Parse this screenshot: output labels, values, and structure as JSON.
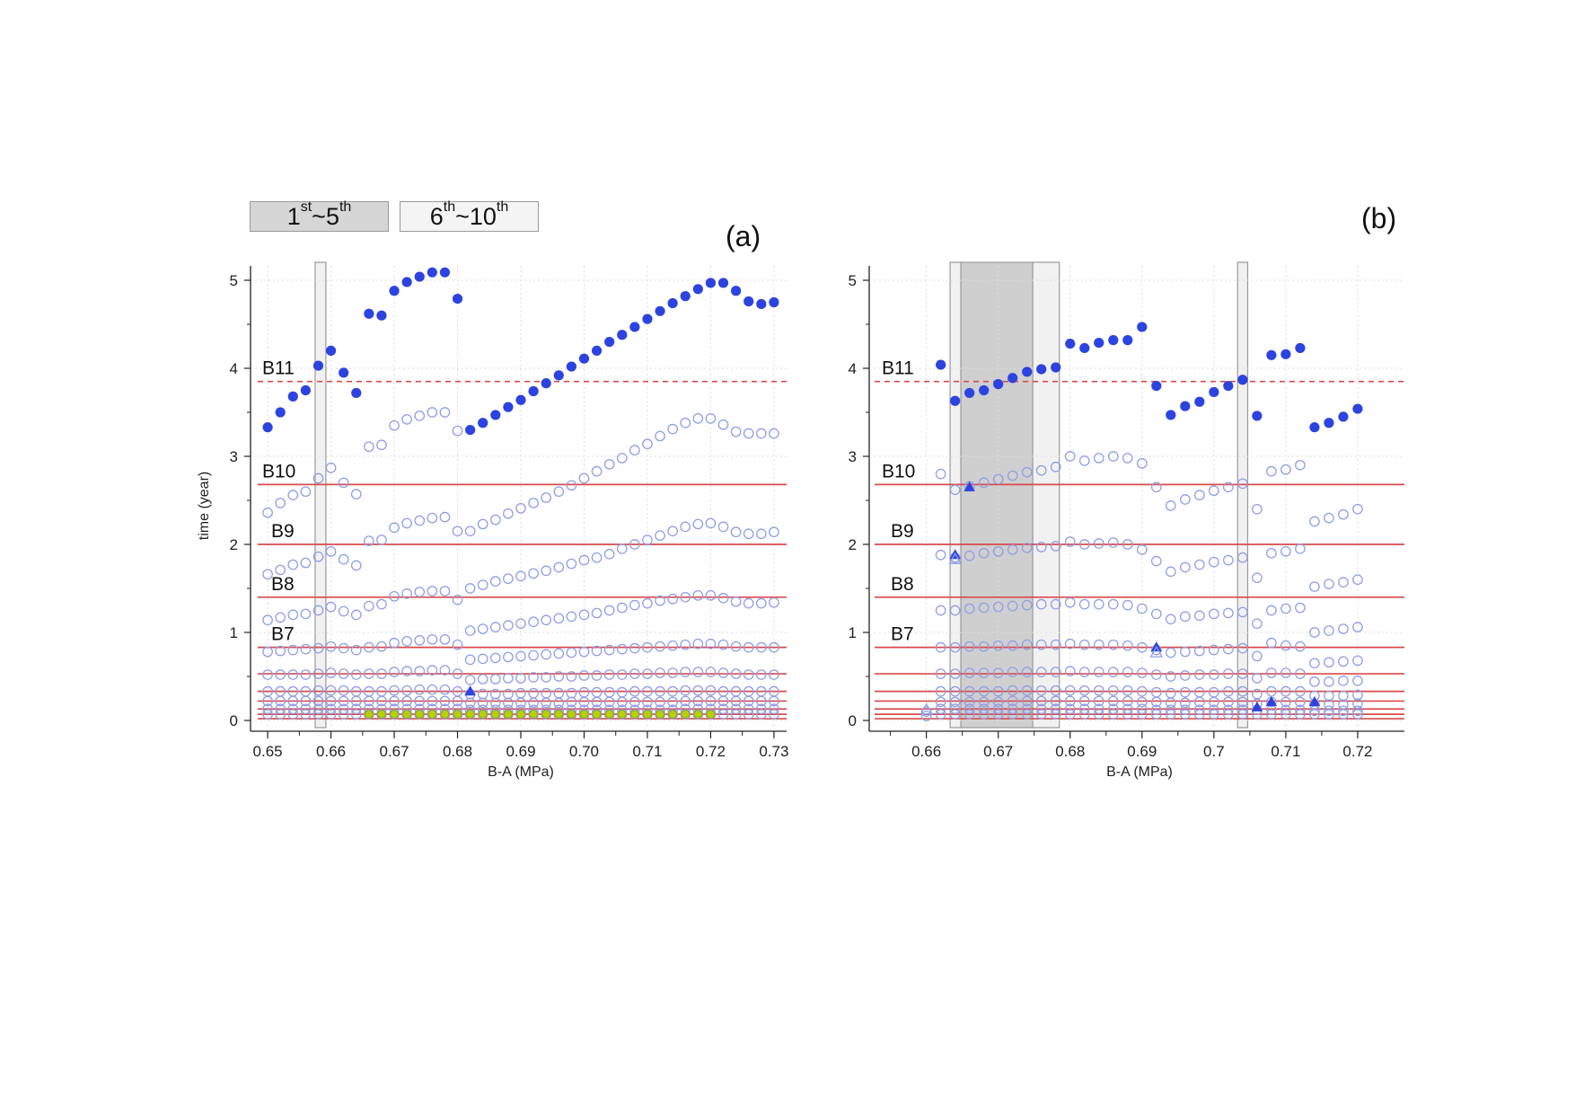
{
  "legend": {
    "dark": {
      "base": "1",
      "sup1": "st",
      "mid": "~5",
      "sup2": "th",
      "color": "#d3d3d3"
    },
    "light": {
      "base": "6",
      "sup1": "th",
      "mid": "~10",
      "sup2": "th",
      "color": "#f2f2f2"
    }
  },
  "colors": {
    "filled": "#2d43e0",
    "hollow": "#8f9fe6",
    "line": "#d94a4a",
    "highlight": "#b8d000"
  },
  "chart_data": [
    {
      "type": "scatter",
      "panel": "(a)",
      "xlabel": "B-A (MPa)",
      "ylabel": "time (year)",
      "xlim": [
        0.648,
        0.732
      ],
      "ylim": [
        0,
        5.3
      ],
      "xticks": [
        "0.65",
        "0.66",
        "0.67",
        "0.68",
        "0.69",
        "0.70",
        "0.71",
        "0.72",
        "0.73"
      ],
      "yticks": [
        "0",
        "1",
        "2",
        "3",
        "4",
        "5"
      ],
      "grid": true,
      "h_lines": [
        {
          "label": "B11",
          "y": 3.85,
          "style": "dashed"
        },
        {
          "label": "B10",
          "y": 2.68,
          "style": "solid"
        },
        {
          "label": "B9",
          "y": 2.0,
          "style": "solid"
        },
        {
          "label": "B8",
          "y": 1.4,
          "style": "solid"
        },
        {
          "label": "B7",
          "y": 0.83,
          "style": "solid"
        },
        {
          "label": "",
          "y": 0.53,
          "style": "solid"
        },
        {
          "label": "",
          "y": 0.33,
          "style": "solid"
        },
        {
          "label": "",
          "y": 0.22,
          "style": "solid"
        },
        {
          "label": "",
          "y": 0.13,
          "style": "solid"
        },
        {
          "label": "",
          "y": 0.07,
          "style": "solid"
        },
        {
          "label": "",
          "y": 0.02,
          "style": "solid"
        }
      ],
      "bands": [
        {
          "x0": 0.6575,
          "x1": 0.6592,
          "shade": "light"
        }
      ],
      "filled_points": {
        "x": [
          0.65,
          0.652,
          0.654,
          0.656,
          0.658,
          0.66,
          0.662,
          0.664,
          0.666,
          0.668,
          0.67,
          0.672,
          0.674,
          0.676,
          0.678,
          0.68,
          0.682,
          0.684,
          0.686,
          0.688,
          0.69,
          0.692,
          0.694,
          0.696,
          0.698,
          0.7,
          0.702,
          0.704,
          0.706,
          0.708,
          0.71,
          0.712,
          0.714,
          0.716,
          0.718,
          0.72,
          0.722,
          0.724,
          0.726,
          0.728,
          0.73
        ],
        "y": [
          3.33,
          3.5,
          3.68,
          3.75,
          4.03,
          4.2,
          3.95,
          3.72,
          4.62,
          4.6,
          4.88,
          4.98,
          5.04,
          5.09,
          5.09,
          4.79,
          3.3,
          3.38,
          3.47,
          3.56,
          3.64,
          3.74,
          3.83,
          3.92,
          4.02,
          4.11,
          4.2,
          4.3,
          4.38,
          4.47,
          4.56,
          4.65,
          4.74,
          4.82,
          4.9,
          4.97,
          4.97,
          4.88,
          4.76,
          4.73,
          4.75
        ]
      },
      "hollow_series_y": [
        [
          2.36,
          2.47,
          2.56,
          2.6,
          2.75,
          2.87,
          2.7,
          2.57,
          3.11,
          3.13,
          3.35,
          3.42,
          3.46,
          3.5,
          3.5,
          3.29,
          2.15,
          2.23,
          2.28,
          2.35,
          2.41,
          2.47,
          2.53,
          2.6,
          2.67,
          2.75,
          2.83,
          2.91,
          2.98,
          3.07,
          3.14,
          3.23,
          3.31,
          3.38,
          3.43,
          3.43,
          3.36,
          3.28,
          3.26,
          3.26,
          3.26
        ],
        [
          1.66,
          1.71,
          1.77,
          1.79,
          1.86,
          1.92,
          1.83,
          1.76,
          2.04,
          2.05,
          2.19,
          2.24,
          2.27,
          2.3,
          2.31,
          2.15,
          1.5,
          1.54,
          1.58,
          1.61,
          1.64,
          1.67,
          1.7,
          1.74,
          1.78,
          1.82,
          1.85,
          1.89,
          1.95,
          2.0,
          2.05,
          2.1,
          2.15,
          2.2,
          2.23,
          2.24,
          2.2,
          2.14,
          2.12,
          2.12,
          2.14
        ],
        [
          1.14,
          1.17,
          1.2,
          1.21,
          1.25,
          1.29,
          1.24,
          1.2,
          1.3,
          1.32,
          1.41,
          1.44,
          1.46,
          1.47,
          1.47,
          1.37,
          1.02,
          1.04,
          1.06,
          1.08,
          1.1,
          1.12,
          1.14,
          1.16,
          1.18,
          1.2,
          1.22,
          1.25,
          1.28,
          1.31,
          1.33,
          1.36,
          1.38,
          1.4,
          1.42,
          1.42,
          1.39,
          1.35,
          1.33,
          1.33,
          1.34
        ],
        [
          0.78,
          0.79,
          0.8,
          0.81,
          0.82,
          0.84,
          0.82,
          0.8,
          0.83,
          0.84,
          0.88,
          0.9,
          0.91,
          0.92,
          0.92,
          0.86,
          0.69,
          0.7,
          0.71,
          0.72,
          0.73,
          0.74,
          0.75,
          0.76,
          0.77,
          0.78,
          0.79,
          0.8,
          0.81,
          0.82,
          0.83,
          0.84,
          0.85,
          0.86,
          0.87,
          0.87,
          0.86,
          0.84,
          0.83,
          0.83,
          0.83
        ],
        [
          0.52,
          0.52,
          0.52,
          0.52,
          0.53,
          0.54,
          0.53,
          0.52,
          0.53,
          0.53,
          0.55,
          0.56,
          0.56,
          0.57,
          0.57,
          0.53,
          0.46,
          0.47,
          0.47,
          0.48,
          0.48,
          0.49,
          0.49,
          0.5,
          0.5,
          0.51,
          0.51,
          0.52,
          0.52,
          0.53,
          0.53,
          0.54,
          0.54,
          0.55,
          0.55,
          0.55,
          0.54,
          0.53,
          0.52,
          0.52,
          0.52
        ],
        [
          0.33,
          0.33,
          0.33,
          0.33,
          0.34,
          0.34,
          0.34,
          0.33,
          0.33,
          0.33,
          0.34,
          0.34,
          0.35,
          0.35,
          0.35,
          0.33,
          0.3,
          0.3,
          0.3,
          0.3,
          0.31,
          0.31,
          0.31,
          0.31,
          0.31,
          0.32,
          0.32,
          0.32,
          0.32,
          0.33,
          0.33,
          0.33,
          0.33,
          0.34,
          0.34,
          0.34,
          0.33,
          0.33,
          0.33,
          0.33,
          0.33
        ],
        [
          0.22,
          0.22,
          0.22,
          0.22,
          0.22,
          0.22,
          0.22,
          0.22,
          0.22,
          0.22,
          0.22,
          0.22,
          0.22,
          0.22,
          0.22,
          0.22,
          0.2,
          0.2,
          0.2,
          0.2,
          0.2,
          0.2,
          0.2,
          0.2,
          0.21,
          0.21,
          0.21,
          0.21,
          0.21,
          0.21,
          0.21,
          0.21,
          0.21,
          0.22,
          0.22,
          0.22,
          0.22,
          0.22,
          0.22,
          0.22,
          0.22
        ],
        [
          0.13,
          0.13,
          0.13,
          0.13,
          0.13,
          0.13,
          0.13,
          0.13,
          0.13,
          0.13,
          0.13,
          0.13,
          0.13,
          0.13,
          0.13,
          0.13,
          0.12,
          0.12,
          0.12,
          0.12,
          0.12,
          0.12,
          0.12,
          0.12,
          0.12,
          0.12,
          0.12,
          0.12,
          0.12,
          0.12,
          0.12,
          0.12,
          0.12,
          0.13,
          0.13,
          0.13,
          0.13,
          0.13,
          0.13,
          0.13,
          0.13
        ],
        [
          0.07,
          0.07,
          0.07,
          0.07,
          0.07,
          0.07,
          0.07,
          0.07,
          0.07,
          0.07,
          0.07,
          0.07,
          0.07,
          0.07,
          0.07,
          0.07,
          0.07,
          0.07,
          0.07,
          0.07,
          0.07,
          0.07,
          0.07,
          0.07,
          0.07,
          0.07,
          0.07,
          0.07,
          0.07,
          0.07,
          0.07,
          0.07,
          0.07,
          0.07,
          0.07,
          0.07,
          0.07,
          0.07,
          0.07,
          0.07,
          0.07
        ]
      ],
      "highlight_points": {
        "x": [
          0.666,
          0.668,
          0.67,
          0.672,
          0.674,
          0.676,
          0.678,
          0.68,
          0.682,
          0.684,
          0.686,
          0.688,
          0.69,
          0.692,
          0.694,
          0.696,
          0.698,
          0.7,
          0.702,
          0.704,
          0.706,
          0.708,
          0.71,
          0.712,
          0.714,
          0.716,
          0.718,
          0.72
        ],
        "y": 0.07
      },
      "triangles": [
        {
          "x": 0.682,
          "y": 0.33,
          "fill": "filled"
        }
      ]
    },
    {
      "type": "scatter",
      "panel": "(b)",
      "xlabel": "B-A (MPa)",
      "ylabel": "",
      "xlim": [
        0.6528,
        0.7265
      ],
      "ylim": [
        0,
        5.3
      ],
      "xticks": [
        "0.66",
        "0.67",
        "0.68",
        "0.69",
        "0.7",
        "0.71",
        "0.72"
      ],
      "yticks": [
        "0",
        "1",
        "2",
        "3",
        "4",
        "5"
      ],
      "grid": true,
      "h_lines": [
        {
          "label": "B11",
          "y": 3.85,
          "style": "dashed"
        },
        {
          "label": "B10",
          "y": 2.68,
          "style": "solid"
        },
        {
          "label": "B9",
          "y": 2.0,
          "style": "solid"
        },
        {
          "label": "B8",
          "y": 1.4,
          "style": "solid"
        },
        {
          "label": "B7",
          "y": 0.83,
          "style": "solid"
        },
        {
          "label": "",
          "y": 0.53,
          "style": "solid"
        },
        {
          "label": "",
          "y": 0.33,
          "style": "solid"
        },
        {
          "label": "",
          "y": 0.22,
          "style": "solid"
        },
        {
          "label": "",
          "y": 0.13,
          "style": "solid"
        },
        {
          "label": "",
          "y": 0.07,
          "style": "solid"
        },
        {
          "label": "",
          "y": 0.02,
          "style": "solid"
        }
      ],
      "bands": [
        {
          "x0": 0.6633,
          "x1": 0.6648,
          "shade": "light"
        },
        {
          "x0": 0.6648,
          "x1": 0.6748,
          "shade": "dark"
        },
        {
          "x0": 0.6748,
          "x1": 0.6785,
          "shade": "light"
        },
        {
          "x0": 0.7033,
          "x1": 0.7047,
          "shade": "light"
        }
      ],
      "filled_points": {
        "x": [
          0.662,
          0.664,
          0.666,
          0.668,
          0.67,
          0.672,
          0.674,
          0.676,
          0.678,
          0.68,
          0.682,
          0.684,
          0.686,
          0.688,
          0.69,
          0.692,
          0.694,
          0.696,
          0.698,
          0.7,
          0.702,
          0.704,
          0.706,
          0.708,
          0.71,
          0.712,
          0.714,
          0.716,
          0.718,
          0.72
        ],
        "y": [
          4.04,
          3.63,
          3.72,
          3.75,
          3.82,
          3.89,
          3.96,
          3.99,
          4.01,
          4.28,
          4.23,
          4.29,
          4.32,
          4.32,
          4.47,
          3.8,
          3.47,
          3.57,
          3.62,
          3.73,
          3.8,
          3.87,
          3.46,
          4.15,
          4.16,
          4.23,
          3.33,
          3.38,
          3.45,
          3.54
        ]
      },
      "hollow_series_y": [
        [
          2.8,
          2.62,
          2.66,
          2.7,
          2.74,
          2.78,
          2.82,
          2.84,
          2.88,
          3.0,
          2.95,
          2.98,
          3.0,
          2.98,
          2.92,
          2.65,
          2.44,
          2.51,
          2.56,
          2.61,
          2.65,
          2.69,
          2.4,
          2.83,
          2.85,
          2.9,
          2.26,
          2.3,
          2.34,
          2.4
        ],
        [
          1.88,
          1.85,
          1.87,
          1.9,
          1.92,
          1.94,
          1.96,
          1.97,
          1.98,
          2.03,
          2.0,
          2.01,
          2.02,
          2.0,
          1.94,
          1.81,
          1.69,
          1.74,
          1.77,
          1.8,
          1.82,
          1.85,
          1.62,
          1.9,
          1.92,
          1.95,
          1.52,
          1.55,
          1.57,
          1.6
        ],
        [
          1.25,
          1.25,
          1.27,
          1.28,
          1.29,
          1.3,
          1.31,
          1.32,
          1.32,
          1.34,
          1.32,
          1.32,
          1.32,
          1.31,
          1.27,
          1.21,
          1.15,
          1.18,
          1.19,
          1.21,
          1.22,
          1.23,
          1.1,
          1.25,
          1.27,
          1.28,
          1.0,
          1.02,
          1.04,
          1.06
        ],
        [
          0.83,
          0.83,
          0.84,
          0.84,
          0.85,
          0.85,
          0.86,
          0.86,
          0.86,
          0.87,
          0.86,
          0.86,
          0.86,
          0.85,
          0.83,
          0.8,
          0.77,
          0.78,
          0.79,
          0.8,
          0.81,
          0.82,
          0.73,
          0.88,
          0.85,
          0.84,
          0.65,
          0.66,
          0.67,
          0.68
        ],
        [
          0.53,
          0.53,
          0.54,
          0.54,
          0.54,
          0.55,
          0.55,
          0.55,
          0.55,
          0.56,
          0.55,
          0.55,
          0.55,
          0.55,
          0.54,
          0.52,
          0.5,
          0.51,
          0.52,
          0.52,
          0.53,
          0.53,
          0.48,
          0.54,
          0.54,
          0.53,
          0.44,
          0.44,
          0.45,
          0.45
        ],
        [
          0.33,
          0.33,
          0.33,
          0.33,
          0.33,
          0.34,
          0.34,
          0.34,
          0.34,
          0.34,
          0.34,
          0.34,
          0.34,
          0.34,
          0.33,
          0.32,
          0.31,
          0.32,
          0.32,
          0.32,
          0.33,
          0.33,
          0.3,
          0.33,
          0.33,
          0.33,
          0.28,
          0.28,
          0.28,
          0.29
        ],
        [
          0.21,
          0.21,
          0.21,
          0.21,
          0.21,
          0.22,
          0.22,
          0.22,
          0.22,
          0.22,
          0.22,
          0.22,
          0.22,
          0.22,
          0.21,
          0.21,
          0.2,
          0.2,
          0.21,
          0.21,
          0.21,
          0.21,
          0.19,
          0.21,
          0.21,
          0.21,
          0.18,
          0.18,
          0.18,
          0.19
        ],
        [
          0.13,
          0.13,
          0.13,
          0.13,
          0.13,
          0.13,
          0.13,
          0.13,
          0.13,
          0.13,
          0.13,
          0.13,
          0.13,
          0.13,
          0.13,
          0.12,
          0.12,
          0.12,
          0.12,
          0.12,
          0.12,
          0.12,
          0.12,
          0.12,
          0.12,
          0.12,
          0.11,
          0.11,
          0.11,
          0.11
        ],
        [
          0.07,
          0.07,
          0.07,
          0.07,
          0.07,
          0.07,
          0.07,
          0.07,
          0.07,
          0.07,
          0.07,
          0.07,
          0.07,
          0.07,
          0.07,
          0.07,
          0.07,
          0.07,
          0.07,
          0.07,
          0.07,
          0.07,
          0.07,
          0.07,
          0.07,
          0.07,
          0.07,
          0.07,
          0.07,
          0.07
        ]
      ],
      "extra_hollow": [
        {
          "x": 0.66,
          "y": 0.1
        },
        {
          "x": 0.66,
          "y": 0.05
        }
      ],
      "triangles": [
        {
          "x": 0.664,
          "y": 1.88,
          "fill": "filled"
        },
        {
          "x": 0.664,
          "y": 1.83,
          "fill": "hollow"
        },
        {
          "x": 0.666,
          "y": 2.65,
          "fill": "filled"
        },
        {
          "x": 0.692,
          "y": 0.83,
          "fill": "filled"
        },
        {
          "x": 0.692,
          "y": 0.77,
          "fill": "hollow"
        },
        {
          "x": 0.706,
          "y": 0.15,
          "fill": "filled"
        },
        {
          "x": 0.708,
          "y": 0.21,
          "fill": "filled"
        },
        {
          "x": 0.714,
          "y": 0.21,
          "fill": "filled"
        },
        {
          "x": 0.66,
          "y": 0.12,
          "fill": "hollow"
        }
      ]
    }
  ]
}
